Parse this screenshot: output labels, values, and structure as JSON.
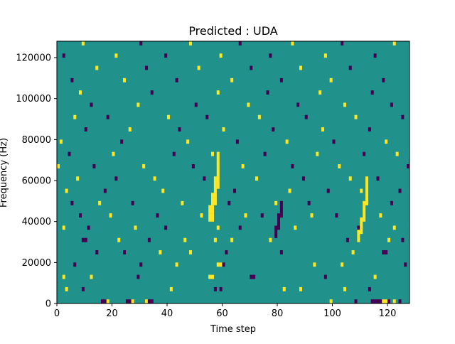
{
  "chart_data": {
    "type": "heatmap",
    "title": "Predicted : UDA",
    "xlabel": "Time step",
    "ylabel": "Frequency (Hz)",
    "xlim": [
      0,
      128
    ],
    "ylim": [
      0,
      128000
    ],
    "xticks": [
      0,
      20,
      40,
      60,
      80,
      100,
      120
    ],
    "yticks": [
      0,
      20000,
      40000,
      60000,
      80000,
      100000,
      120000
    ],
    "grid": false,
    "legend": "none",
    "rows": 64,
    "cols": 128,
    "levels": {
      "low": {
        "value": -1,
        "color": "#440154"
      },
      "mid": {
        "value": 0,
        "color": "#21918c"
      },
      "high": {
        "value": 1,
        "color": "#fde725"
      }
    },
    "background_level": 0,
    "cells": [
      {
        "x": 16,
        "y": 0,
        "v": -1
      },
      {
        "x": 17,
        "y": 0,
        "v": -1
      },
      {
        "x": 18,
        "y": 0,
        "v": 1
      },
      {
        "x": 25,
        "y": 0,
        "v": -1
      },
      {
        "x": 26,
        "y": 0,
        "v": -1
      },
      {
        "x": 27,
        "y": 0,
        "v": 1
      },
      {
        "x": 32,
        "y": 0,
        "v": 1
      },
      {
        "x": 33,
        "y": 0,
        "v": -1
      },
      {
        "x": 34,
        "y": 0,
        "v": -1
      },
      {
        "x": 99,
        "y": 0,
        "v": 1
      },
      {
        "x": 108,
        "y": 0,
        "v": -1
      },
      {
        "x": 114,
        "y": 0,
        "v": -1
      },
      {
        "x": 115,
        "y": 0,
        "v": -1
      },
      {
        "x": 116,
        "y": 0,
        "v": -1
      },
      {
        "x": 117,
        "y": 0,
        "v": -1
      },
      {
        "x": 118,
        "y": 0,
        "v": 1
      },
      {
        "x": 119,
        "y": 0,
        "v": 1
      },
      {
        "x": 120,
        "y": 0,
        "v": -1
      },
      {
        "x": 122,
        "y": 0,
        "v": 1
      },
      {
        "x": 124,
        "y": 0,
        "v": -1
      },
      {
        "x": 3,
        "y": 3,
        "v": 1
      },
      {
        "x": 9,
        "y": 3,
        "v": -1
      },
      {
        "x": 41,
        "y": 3,
        "v": 1
      },
      {
        "x": 57,
        "y": 3,
        "v": -1
      },
      {
        "x": 59,
        "y": 3,
        "v": -1
      },
      {
        "x": 82,
        "y": 3,
        "v": 1
      },
      {
        "x": 88,
        "y": 3,
        "v": 1
      },
      {
        "x": 104,
        "y": 3,
        "v": 1
      },
      {
        "x": 113,
        "y": 3,
        "v": -1
      },
      {
        "x": 2,
        "y": 6,
        "v": 1
      },
      {
        "x": 12,
        "y": 6,
        "v": 1
      },
      {
        "x": 29,
        "y": 6,
        "v": -1
      },
      {
        "x": 55,
        "y": 6,
        "v": 1
      },
      {
        "x": 56,
        "y": 6,
        "v": 1
      },
      {
        "x": 70,
        "y": 6,
        "v": -1
      },
      {
        "x": 71,
        "y": 6,
        "v": -1
      },
      {
        "x": 97,
        "y": 6,
        "v": -1
      },
      {
        "x": 115,
        "y": 6,
        "v": 1
      },
      {
        "x": 6,
        "y": 9,
        "v": -1
      },
      {
        "x": 30,
        "y": 9,
        "v": -1
      },
      {
        "x": 43,
        "y": 9,
        "v": 1
      },
      {
        "x": 58,
        "y": 9,
        "v": 1
      },
      {
        "x": 59,
        "y": 9,
        "v": 1
      },
      {
        "x": 60,
        "y": 9,
        "v": -1
      },
      {
        "x": 93,
        "y": 9,
        "v": 1
      },
      {
        "x": 103,
        "y": 9,
        "v": 1
      },
      {
        "x": 126,
        "y": 9,
        "v": -1
      },
      {
        "x": 14,
        "y": 12,
        "v": -1
      },
      {
        "x": 24,
        "y": 12,
        "v": -1
      },
      {
        "x": 37,
        "y": 12,
        "v": 1
      },
      {
        "x": 48,
        "y": 12,
        "v": 1
      },
      {
        "x": 61,
        "y": 12,
        "v": -1
      },
      {
        "x": 81,
        "y": 12,
        "v": -1
      },
      {
        "x": 107,
        "y": 12,
        "v": 1
      },
      {
        "x": 118,
        "y": 12,
        "v": -1
      },
      {
        "x": 119,
        "y": 12,
        "v": -1
      },
      {
        "x": 9,
        "y": 15,
        "v": -1
      },
      {
        "x": 10,
        "y": 15,
        "v": -1
      },
      {
        "x": 22,
        "y": 15,
        "v": 1
      },
      {
        "x": 33,
        "y": 15,
        "v": -1
      },
      {
        "x": 46,
        "y": 15,
        "v": 1
      },
      {
        "x": 57,
        "y": 15,
        "v": 1
      },
      {
        "x": 63,
        "y": 15,
        "v": 1
      },
      {
        "x": 77,
        "y": 15,
        "v": 1
      },
      {
        "x": 105,
        "y": 15,
        "v": -1
      },
      {
        "x": 120,
        "y": 15,
        "v": 1
      },
      {
        "x": 125,
        "y": 15,
        "v": -1
      },
      {
        "x": 2,
        "y": 18,
        "v": 1
      },
      {
        "x": 11,
        "y": 18,
        "v": -1
      },
      {
        "x": 28,
        "y": 18,
        "v": 1
      },
      {
        "x": 39,
        "y": 18,
        "v": -1
      },
      {
        "x": 58,
        "y": 18,
        "v": 1
      },
      {
        "x": 66,
        "y": 18,
        "v": -1
      },
      {
        "x": 86,
        "y": 18,
        "v": 1
      },
      {
        "x": 109,
        "y": 18,
        "v": -1
      },
      {
        "x": 122,
        "y": 18,
        "v": 1
      },
      {
        "x": 8,
        "y": 21,
        "v": -1
      },
      {
        "x": 19,
        "y": 21,
        "v": 1
      },
      {
        "x": 36,
        "y": 21,
        "v": -1
      },
      {
        "x": 52,
        "y": 21,
        "v": 1
      },
      {
        "x": 68,
        "y": 21,
        "v": 1
      },
      {
        "x": 74,
        "y": 21,
        "v": -1
      },
      {
        "x": 92,
        "y": 21,
        "v": 1
      },
      {
        "x": 101,
        "y": 21,
        "v": -1
      },
      {
        "x": 117,
        "y": 21,
        "v": 1
      },
      {
        "x": 5,
        "y": 24,
        "v": -1
      },
      {
        "x": 15,
        "y": 24,
        "v": 1
      },
      {
        "x": 27,
        "y": 24,
        "v": -1
      },
      {
        "x": 45,
        "y": 24,
        "v": 1
      },
      {
        "x": 62,
        "y": 24,
        "v": -1
      },
      {
        "x": 79,
        "y": 24,
        "v": 1
      },
      {
        "x": 91,
        "y": 24,
        "v": -1
      },
      {
        "x": 112,
        "y": 24,
        "v": 1
      },
      {
        "x": 121,
        "y": 24,
        "v": -1
      },
      {
        "x": 3,
        "y": 27,
        "v": 1
      },
      {
        "x": 17,
        "y": 27,
        "v": -1
      },
      {
        "x": 38,
        "y": 27,
        "v": 1
      },
      {
        "x": 64,
        "y": 27,
        "v": -1
      },
      {
        "x": 84,
        "y": 27,
        "v": 1
      },
      {
        "x": 98,
        "y": 27,
        "v": -1
      },
      {
        "x": 110,
        "y": 27,
        "v": 1
      },
      {
        "x": 124,
        "y": 27,
        "v": -1
      },
      {
        "x": 7,
        "y": 30,
        "v": 1
      },
      {
        "x": 21,
        "y": 30,
        "v": -1
      },
      {
        "x": 35,
        "y": 30,
        "v": 1
      },
      {
        "x": 53,
        "y": 30,
        "v": -1
      },
      {
        "x": 72,
        "y": 30,
        "v": 1
      },
      {
        "x": 89,
        "y": 30,
        "v": -1
      },
      {
        "x": 106,
        "y": 30,
        "v": 1
      },
      {
        "x": 116,
        "y": 30,
        "v": -1
      },
      {
        "x": 0,
        "y": 33,
        "v": 1
      },
      {
        "x": 13,
        "y": 33,
        "v": -1
      },
      {
        "x": 31,
        "y": 33,
        "v": 1
      },
      {
        "x": 49,
        "y": 33,
        "v": -1
      },
      {
        "x": 67,
        "y": 33,
        "v": 1
      },
      {
        "x": 85,
        "y": 33,
        "v": -1
      },
      {
        "x": 102,
        "y": 33,
        "v": 1
      },
      {
        "x": 127,
        "y": 33,
        "v": -1
      },
      {
        "x": 4,
        "y": 36,
        "v": -1
      },
      {
        "x": 20,
        "y": 36,
        "v": 1
      },
      {
        "x": 42,
        "y": 36,
        "v": -1
      },
      {
        "x": 56,
        "y": 36,
        "v": 1
      },
      {
        "x": 75,
        "y": 36,
        "v": -1
      },
      {
        "x": 94,
        "y": 36,
        "v": 1
      },
      {
        "x": 111,
        "y": 36,
        "v": -1
      },
      {
        "x": 123,
        "y": 36,
        "v": 1
      },
      {
        "x": 1,
        "y": 39,
        "v": 1
      },
      {
        "x": 23,
        "y": 39,
        "v": -1
      },
      {
        "x": 47,
        "y": 39,
        "v": 1
      },
      {
        "x": 65,
        "y": 39,
        "v": -1
      },
      {
        "x": 83,
        "y": 39,
        "v": 1
      },
      {
        "x": 100,
        "y": 39,
        "v": -1
      },
      {
        "x": 119,
        "y": 39,
        "v": 1
      },
      {
        "x": 10,
        "y": 42,
        "v": -1
      },
      {
        "x": 26,
        "y": 42,
        "v": 1
      },
      {
        "x": 44,
        "y": 42,
        "v": -1
      },
      {
        "x": 60,
        "y": 42,
        "v": 1
      },
      {
        "x": 78,
        "y": 42,
        "v": -1
      },
      {
        "x": 96,
        "y": 42,
        "v": 1
      },
      {
        "x": 113,
        "y": 42,
        "v": -1
      },
      {
        "x": 6,
        "y": 45,
        "v": 1
      },
      {
        "x": 18,
        "y": 45,
        "v": -1
      },
      {
        "x": 40,
        "y": 45,
        "v": 1
      },
      {
        "x": 54,
        "y": 45,
        "v": -1
      },
      {
        "x": 73,
        "y": 45,
        "v": 1
      },
      {
        "x": 90,
        "y": 45,
        "v": -1
      },
      {
        "x": 108,
        "y": 45,
        "v": 1
      },
      {
        "x": 125,
        "y": 45,
        "v": -1
      },
      {
        "x": 12,
        "y": 48,
        "v": -1
      },
      {
        "x": 29,
        "y": 48,
        "v": 1
      },
      {
        "x": 50,
        "y": 48,
        "v": -1
      },
      {
        "x": 69,
        "y": 48,
        "v": 1
      },
      {
        "x": 87,
        "y": 48,
        "v": -1
      },
      {
        "x": 104,
        "y": 48,
        "v": 1
      },
      {
        "x": 121,
        "y": 48,
        "v": -1
      },
      {
        "x": 8,
        "y": 51,
        "v": 1
      },
      {
        "x": 34,
        "y": 51,
        "v": -1
      },
      {
        "x": 58,
        "y": 51,
        "v": 1
      },
      {
        "x": 76,
        "y": 51,
        "v": -1
      },
      {
        "x": 95,
        "y": 51,
        "v": 1
      },
      {
        "x": 114,
        "y": 51,
        "v": -1
      },
      {
        "x": 5,
        "y": 54,
        "v": -1
      },
      {
        "x": 24,
        "y": 54,
        "v": 1
      },
      {
        "x": 43,
        "y": 54,
        "v": -1
      },
      {
        "x": 63,
        "y": 54,
        "v": 1
      },
      {
        "x": 81,
        "y": 54,
        "v": -1
      },
      {
        "x": 99,
        "y": 54,
        "v": 1
      },
      {
        "x": 118,
        "y": 54,
        "v": -1
      },
      {
        "x": 14,
        "y": 57,
        "v": 1
      },
      {
        "x": 32,
        "y": 57,
        "v": -1
      },
      {
        "x": 51,
        "y": 57,
        "v": 1
      },
      {
        "x": 70,
        "y": 57,
        "v": -1
      },
      {
        "x": 88,
        "y": 57,
        "v": 1
      },
      {
        "x": 106,
        "y": 57,
        "v": -1
      },
      {
        "x": 2,
        "y": 60,
        "v": -1
      },
      {
        "x": 21,
        "y": 60,
        "v": 1
      },
      {
        "x": 39,
        "y": 60,
        "v": -1
      },
      {
        "x": 59,
        "y": 60,
        "v": 1
      },
      {
        "x": 77,
        "y": 60,
        "v": -1
      },
      {
        "x": 97,
        "y": 60,
        "v": 1
      },
      {
        "x": 115,
        "y": 60,
        "v": -1
      },
      {
        "x": 9,
        "y": 63,
        "v": 1
      },
      {
        "x": 30,
        "y": 63,
        "v": -1
      },
      {
        "x": 48,
        "y": 63,
        "v": 1
      },
      {
        "x": 66,
        "y": 63,
        "v": -1
      },
      {
        "x": 85,
        "y": 63,
        "v": 1
      },
      {
        "x": 103,
        "y": 63,
        "v": -1
      },
      {
        "x": 122,
        "y": 63,
        "v": 1
      },
      {
        "x": 55,
        "y": 20,
        "v": 1
      },
      {
        "x": 55,
        "y": 21,
        "v": 1
      },
      {
        "x": 55,
        "y": 22,
        "v": 1
      },
      {
        "x": 55,
        "y": 23,
        "v": 1
      },
      {
        "x": 56,
        "y": 20,
        "v": 1
      },
      {
        "x": 56,
        "y": 21,
        "v": 1
      },
      {
        "x": 56,
        "y": 22,
        "v": 1
      },
      {
        "x": 56,
        "y": 23,
        "v": 1
      },
      {
        "x": 56,
        "y": 24,
        "v": 1
      },
      {
        "x": 56,
        "y": 25,
        "v": 1
      },
      {
        "x": 56,
        "y": 26,
        "v": 1
      },
      {
        "x": 57,
        "y": 24,
        "v": 1
      },
      {
        "x": 57,
        "y": 25,
        "v": 1
      },
      {
        "x": 57,
        "y": 26,
        "v": 1
      },
      {
        "x": 57,
        "y": 27,
        "v": 1
      },
      {
        "x": 57,
        "y": 28,
        "v": 1
      },
      {
        "x": 57,
        "y": 29,
        "v": 1
      },
      {
        "x": 57,
        "y": 30,
        "v": 1
      },
      {
        "x": 58,
        "y": 28,
        "v": 1
      },
      {
        "x": 58,
        "y": 29,
        "v": 1
      },
      {
        "x": 58,
        "y": 30,
        "v": 1
      },
      {
        "x": 58,
        "y": 31,
        "v": 1
      },
      {
        "x": 58,
        "y": 32,
        "v": 1
      },
      {
        "x": 58,
        "y": 33,
        "v": 1
      },
      {
        "x": 58,
        "y": 34,
        "v": 1
      },
      {
        "x": 58,
        "y": 35,
        "v": 1
      },
      {
        "x": 58,
        "y": 36,
        "v": 1
      },
      {
        "x": 79,
        "y": 16,
        "v": -1
      },
      {
        "x": 79,
        "y": 17,
        "v": -1
      },
      {
        "x": 79,
        "y": 18,
        "v": -1
      },
      {
        "x": 80,
        "y": 18,
        "v": -1
      },
      {
        "x": 80,
        "y": 19,
        "v": -1
      },
      {
        "x": 80,
        "y": 20,
        "v": -1
      },
      {
        "x": 80,
        "y": 21,
        "v": -1
      },
      {
        "x": 81,
        "y": 21,
        "v": -1
      },
      {
        "x": 81,
        "y": 22,
        "v": -1
      },
      {
        "x": 81,
        "y": 23,
        "v": -1
      },
      {
        "x": 81,
        "y": 24,
        "v": -1
      },
      {
        "x": 109,
        "y": 15,
        "v": 1
      },
      {
        "x": 109,
        "y": 16,
        "v": 1
      },
      {
        "x": 109,
        "y": 17,
        "v": 1
      },
      {
        "x": 110,
        "y": 17,
        "v": 1
      },
      {
        "x": 110,
        "y": 18,
        "v": 1
      },
      {
        "x": 110,
        "y": 19,
        "v": 1
      },
      {
        "x": 110,
        "y": 20,
        "v": 1
      },
      {
        "x": 111,
        "y": 20,
        "v": 1
      },
      {
        "x": 111,
        "y": 21,
        "v": 1
      },
      {
        "x": 111,
        "y": 22,
        "v": 1
      },
      {
        "x": 111,
        "y": 23,
        "v": 1
      },
      {
        "x": 111,
        "y": 24,
        "v": 1
      },
      {
        "x": 112,
        "y": 24,
        "v": 1
      },
      {
        "x": 112,
        "y": 25,
        "v": 1
      },
      {
        "x": 112,
        "y": 26,
        "v": 1
      },
      {
        "x": 112,
        "y": 27,
        "v": 1
      },
      {
        "x": 112,
        "y": 28,
        "v": 1
      },
      {
        "x": 112,
        "y": 29,
        "v": 1
      },
      {
        "x": 112,
        "y": 30,
        "v": 1
      }
    ]
  }
}
